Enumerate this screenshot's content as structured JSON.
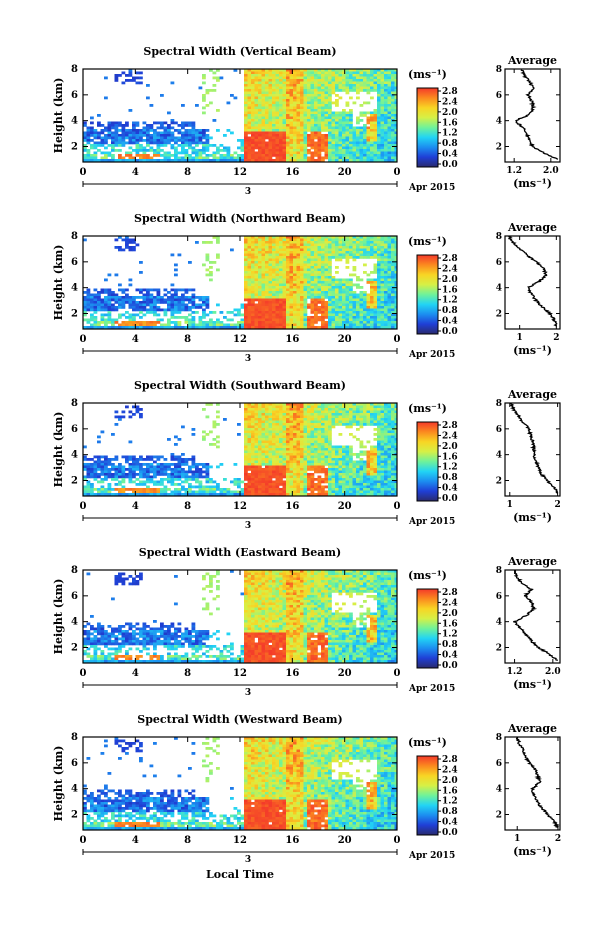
{
  "figure": {
    "xlabel": "Local Time",
    "ylabel": "Height (km)",
    "unit_label": "(ms⁻¹)",
    "day_label": "3",
    "month_label": "Apr 2015",
    "colorbar_ticks": [
      "2.8",
      "2.4",
      "2.0",
      "1.6",
      "1.2",
      "0.8",
      "0.4",
      "0.0"
    ],
    "colormap": [
      "#2a2a6e",
      "#1f3fd6",
      "#1c8ef0",
      "#22d4f4",
      "#6ff29a",
      "#d6f046",
      "#f8d524",
      "#fb8a1f",
      "#f4392a"
    ]
  },
  "chart_data": [
    {
      "type": "heatmap",
      "title": "Spectral Width (Vertical Beam)",
      "xlabel": "Local Time",
      "ylabel": "Height (km)",
      "x_ticks": [
        "0",
        "4",
        "8",
        "12",
        "16",
        "20",
        "0"
      ],
      "xlim": [
        0,
        24
      ],
      "y_ticks": [
        "2",
        "4",
        "6",
        "8"
      ],
      "ylim": [
        0.8,
        8
      ],
      "colorbar_range": [
        0,
        2.8
      ],
      "colorbar_ticks": [
        "2.8",
        "2.4",
        "2.0",
        "1.6",
        "1.2",
        "0.8",
        "0.4",
        "0.0"
      ],
      "average_profile": {
        "title": "Average",
        "xlabel": "(ms⁻¹)",
        "x_ticks": [
          "1.2",
          "2.0"
        ],
        "xlim": [
          1.0,
          2.2
        ],
        "y_ticks": [
          "2",
          "4",
          "6",
          "8"
        ],
        "heights": [
          1.0,
          1.5,
          2.0,
          2.5,
          3.0,
          3.5,
          4.0,
          4.5,
          5.0,
          5.5,
          6.0,
          6.5,
          7.0,
          7.5,
          8.0
        ],
        "values": [
          2.15,
          1.85,
          1.6,
          1.52,
          1.48,
          1.38,
          1.22,
          1.55,
          1.62,
          1.58,
          1.5,
          1.62,
          1.54,
          1.42,
          1.36
        ]
      }
    },
    {
      "type": "heatmap",
      "title": "Spectral Width (Northward Beam)",
      "xlabel": "Local Time",
      "ylabel": "Height (km)",
      "x_ticks": [
        "0",
        "4",
        "8",
        "12",
        "16",
        "20",
        "0"
      ],
      "xlim": [
        0,
        24
      ],
      "y_ticks": [
        "2",
        "4",
        "6",
        "8"
      ],
      "ylim": [
        0.8,
        8
      ],
      "colorbar_range": [
        0,
        2.8
      ],
      "colorbar_ticks": [
        "2.8",
        "2.4",
        "2.0",
        "1.6",
        "1.2",
        "0.8",
        "0.4",
        "0.0"
      ],
      "average_profile": {
        "title": "Average",
        "xlabel": "(ms⁻¹)",
        "x_ticks": [
          "1",
          "2"
        ],
        "xlim": [
          0.6,
          2.1
        ],
        "y_ticks": [
          "2",
          "4",
          "6",
          "8"
        ],
        "heights": [
          1.0,
          1.5,
          2.0,
          2.5,
          3.0,
          3.5,
          4.0,
          4.5,
          5.0,
          5.5,
          6.0,
          6.5,
          7.0,
          7.5,
          8.0
        ],
        "values": [
          2.0,
          1.95,
          1.82,
          1.62,
          1.45,
          1.32,
          1.22,
          1.55,
          1.72,
          1.65,
          1.45,
          1.22,
          1.0,
          0.82,
          0.7
        ]
      }
    },
    {
      "type": "heatmap",
      "title": "Spectral Width (Southward Beam)",
      "xlabel": "Local Time",
      "ylabel": "Height (km)",
      "x_ticks": [
        "0",
        "4",
        "8",
        "12",
        "16",
        "20",
        "0"
      ],
      "xlim": [
        0,
        24
      ],
      "y_ticks": [
        "2",
        "4",
        "6",
        "8"
      ],
      "ylim": [
        0.8,
        8
      ],
      "colorbar_range": [
        0,
        2.8
      ],
      "colorbar_ticks": [
        "2.8",
        "2.4",
        "2.0",
        "1.6",
        "1.2",
        "0.8",
        "0.4",
        "0.0"
      ],
      "average_profile": {
        "title": "Average",
        "xlabel": "(ms⁻¹)",
        "x_ticks": [
          "1",
          "2"
        ],
        "xlim": [
          0.9,
          2.05
        ],
        "y_ticks": [
          "2",
          "4",
          "6",
          "8"
        ],
        "heights": [
          1.0,
          1.5,
          2.0,
          2.5,
          3.0,
          3.5,
          4.0,
          4.5,
          5.0,
          5.5,
          6.0,
          6.5,
          7.0,
          7.5,
          8.0
        ],
        "values": [
          2.0,
          1.92,
          1.78,
          1.66,
          1.6,
          1.55,
          1.5,
          1.5,
          1.48,
          1.44,
          1.4,
          1.28,
          1.18,
          1.08,
          1.02
        ]
      }
    },
    {
      "type": "heatmap",
      "title": "Spectral Width (Eastward Beam)",
      "xlabel": "Local Time",
      "ylabel": "Height (km)",
      "x_ticks": [
        "0",
        "4",
        "8",
        "12",
        "16",
        "20",
        "0"
      ],
      "xlim": [
        0,
        24
      ],
      "y_ticks": [
        "2",
        "4",
        "6",
        "8"
      ],
      "ylim": [
        0.8,
        8
      ],
      "colorbar_range": [
        0,
        2.8
      ],
      "colorbar_ticks": [
        "2.8",
        "2.4",
        "2.0",
        "1.6",
        "1.2",
        "0.8",
        "0.4",
        "0.0"
      ],
      "average_profile": {
        "title": "Average",
        "xlabel": "(ms⁻¹)",
        "x_ticks": [
          "1.2",
          "2.0"
        ],
        "xlim": [
          1.0,
          2.15
        ],
        "y_ticks": [
          "2",
          "4",
          "6",
          "8"
        ],
        "heights": [
          1.0,
          1.5,
          2.0,
          2.5,
          3.0,
          3.5,
          4.0,
          4.5,
          5.0,
          5.5,
          6.0,
          6.5,
          7.0,
          7.5,
          8.0
        ],
        "values": [
          2.1,
          1.92,
          1.7,
          1.55,
          1.45,
          1.32,
          1.2,
          1.45,
          1.6,
          1.55,
          1.42,
          1.55,
          1.35,
          1.25,
          1.2
        ]
      }
    },
    {
      "type": "heatmap",
      "title": "Spectral Width (Westward Beam)",
      "xlabel": "Local Time",
      "ylabel": "Height (km)",
      "x_ticks": [
        "0",
        "4",
        "8",
        "12",
        "16",
        "20",
        "0"
      ],
      "xlim": [
        0,
        24
      ],
      "y_ticks": [
        "2",
        "4",
        "6",
        "8"
      ],
      "ylim": [
        0.8,
        8
      ],
      "colorbar_range": [
        0,
        2.8
      ],
      "colorbar_ticks": [
        "2.8",
        "2.4",
        "2.0",
        "1.6",
        "1.2",
        "0.8",
        "0.4",
        "0.0"
      ],
      "average_profile": {
        "title": "Average",
        "xlabel": "(ms⁻¹)",
        "x_ticks": [
          "1",
          "2"
        ],
        "xlim": [
          0.7,
          2.05
        ],
        "y_ticks": [
          "2",
          "4",
          "6",
          "8"
        ],
        "heights": [
          1.0,
          1.5,
          2.0,
          2.5,
          3.0,
          3.5,
          4.0,
          4.5,
          5.0,
          5.5,
          6.0,
          6.5,
          7.0,
          7.5,
          8.0
        ],
        "values": [
          2.0,
          1.9,
          1.75,
          1.6,
          1.5,
          1.4,
          1.38,
          1.55,
          1.5,
          1.45,
          1.3,
          1.2,
          1.15,
          1.05,
          1.0
        ]
      }
    }
  ]
}
